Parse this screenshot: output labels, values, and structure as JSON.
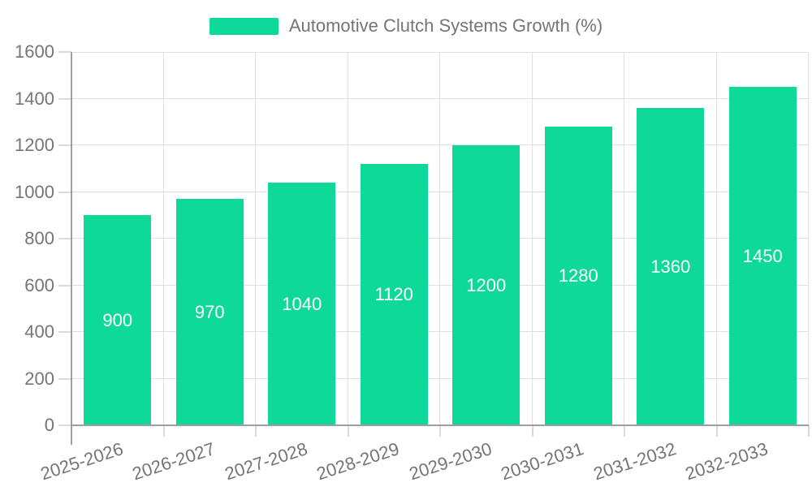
{
  "chart_data": {
    "type": "bar",
    "legend_label": "Automotive Clutch Systems Growth (%)",
    "categories": [
      "2025-2026",
      "2026-2027",
      "2027-2028",
      "2028-2029",
      "2029-2030",
      "2030-2031",
      "2031-2032",
      "2032-2033"
    ],
    "values": [
      900,
      970,
      1040,
      1120,
      1200,
      1280,
      1360,
      1450
    ],
    "yticks": [
      0,
      200,
      400,
      600,
      800,
      1000,
      1200,
      1400,
      1600
    ],
    "ylim": [
      0,
      1600
    ],
    "grid": true,
    "legend_position": "top-center",
    "value_label_position": "inside-middle",
    "xlabel": "",
    "ylabel": ""
  },
  "colors": {
    "bar": "#0ed998",
    "axis_text": "#757575",
    "legend_text": "#757575",
    "grid_line": "#e0e0e0",
    "axis_line": "#9e9e9e",
    "tick_line": "#d9d9d9",
    "value_label_text": "#ffffff",
    "background": "#ffffff"
  }
}
